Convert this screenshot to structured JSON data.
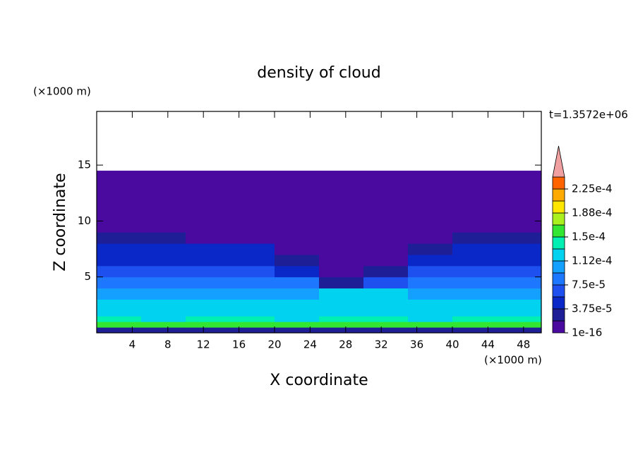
{
  "chart_data": {
    "type": "contour",
    "title": "density of cloud",
    "time_label": "t=1.3572e+06",
    "xlabel": "X coordinate",
    "ylabel": "Z coordinate",
    "x_unit_label": "(×1000 m)",
    "y_unit_label": "(×1000 m)",
    "xlim": [
      0,
      50
    ],
    "ylim": [
      0,
      19.8
    ],
    "xticks": [
      4,
      8,
      12,
      16,
      20,
      24,
      28,
      32,
      36,
      40,
      44,
      48
    ],
    "yticks": [
      5,
      10,
      15
    ],
    "x_edges": [
      0,
      5,
      10,
      15,
      20,
      25,
      30,
      35,
      40,
      45,
      50
    ],
    "z_edges": [
      0,
      0.5,
      1,
      1.5,
      2,
      3,
      4,
      5,
      6,
      7,
      8,
      9,
      14.5
    ],
    "values": [
      [
        2e-05,
        2e-05,
        2e-05,
        2e-05,
        2e-05,
        2e-05,
        2e-05,
        2e-05,
        2e-05,
        2e-05
      ],
      [
        0.00016,
        0.00015,
        0.00016,
        0.00015,
        0.00016,
        0.00015,
        0.00016,
        0.00015,
        0.00016,
        0.00015
      ],
      [
        0.00014,
        0.00013,
        0.00014,
        0.00014,
        0.00013,
        0.00014,
        0.00014,
        0.00013,
        0.00014,
        0.00014
      ],
      [
        0.00013,
        0.00013,
        0.00013,
        0.00013,
        0.00013,
        0.00013,
        0.00013,
        0.00013,
        0.00013,
        0.00013
      ],
      [
        0.00012,
        0.00012,
        0.00012,
        0.00012,
        0.00012,
        0.00012,
        0.00012,
        0.00012,
        0.00012,
        0.00012
      ],
      [
        0.00011,
        0.00011,
        0.00011,
        0.00011,
        0.00011,
        0.00012,
        0.00012,
        0.00011,
        0.00011,
        0.00011
      ],
      [
        9e-05,
        9e-05,
        9e-05,
        9e-05,
        9e-05,
        3e-05,
        6e-05,
        9e-05,
        9e-05,
        9e-05
      ],
      [
        7e-05,
        7e-05,
        7e-05,
        7e-05,
        5e-05,
        1e-16,
        2e-05,
        7e-05,
        7e-05,
        7e-05
      ],
      [
        5e-05,
        5e-05,
        5e-05,
        5e-05,
        2e-05,
        1e-16,
        1e-16,
        4e-05,
        5e-05,
        5e-05
      ],
      [
        4e-05,
        4e-05,
        4e-05,
        4e-05,
        1e-16,
        1e-16,
        1e-16,
        2e-05,
        4e-05,
        5e-05
      ],
      [
        2e-05,
        2e-05,
        1e-16,
        1e-16,
        1e-16,
        1e-16,
        1e-16,
        1e-16,
        2e-05,
        3e-05
      ],
      [
        1e-16,
        1e-16,
        1e-16,
        1e-16,
        1e-16,
        1e-16,
        1e-16,
        1e-16,
        1e-16,
        1e-16
      ]
    ],
    "colorbar": {
      "levels": [
        1e-16,
        1.875e-05,
        3.75e-05,
        5.625e-05,
        7.5e-05,
        9.375e-05,
        0.0001125,
        0.00013125,
        0.00015,
        0.00016875,
        0.0001875,
        0.00020625,
        0.000225,
        0.00024375
      ],
      "colors": [
        "#4a0aa0",
        "#1e1e96",
        "#0a28c8",
        "#1e50f0",
        "#1e78ff",
        "#14a0ff",
        "#00d2f0",
        "#00f0b4",
        "#32e632",
        "#aaf01e",
        "#ffe600",
        "#ffaa00",
        "#ff6400",
        "#ff1e00"
      ],
      "extend_color": "#f0a0a0",
      "ticks": [
        {
          "value": 1e-16,
          "label": "1e-16"
        },
        {
          "value": 3.75e-05,
          "label": "3.75e-5"
        },
        {
          "value": 7.5e-05,
          "label": "7.5e-5"
        },
        {
          "value": 0.0001125,
          "label": "1.12e-4"
        },
        {
          "value": 0.00015,
          "label": "1.5e-4"
        },
        {
          "value": 0.0001875,
          "label": "1.88e-4"
        },
        {
          "value": 0.000225,
          "label": "2.25e-4"
        }
      ]
    }
  }
}
